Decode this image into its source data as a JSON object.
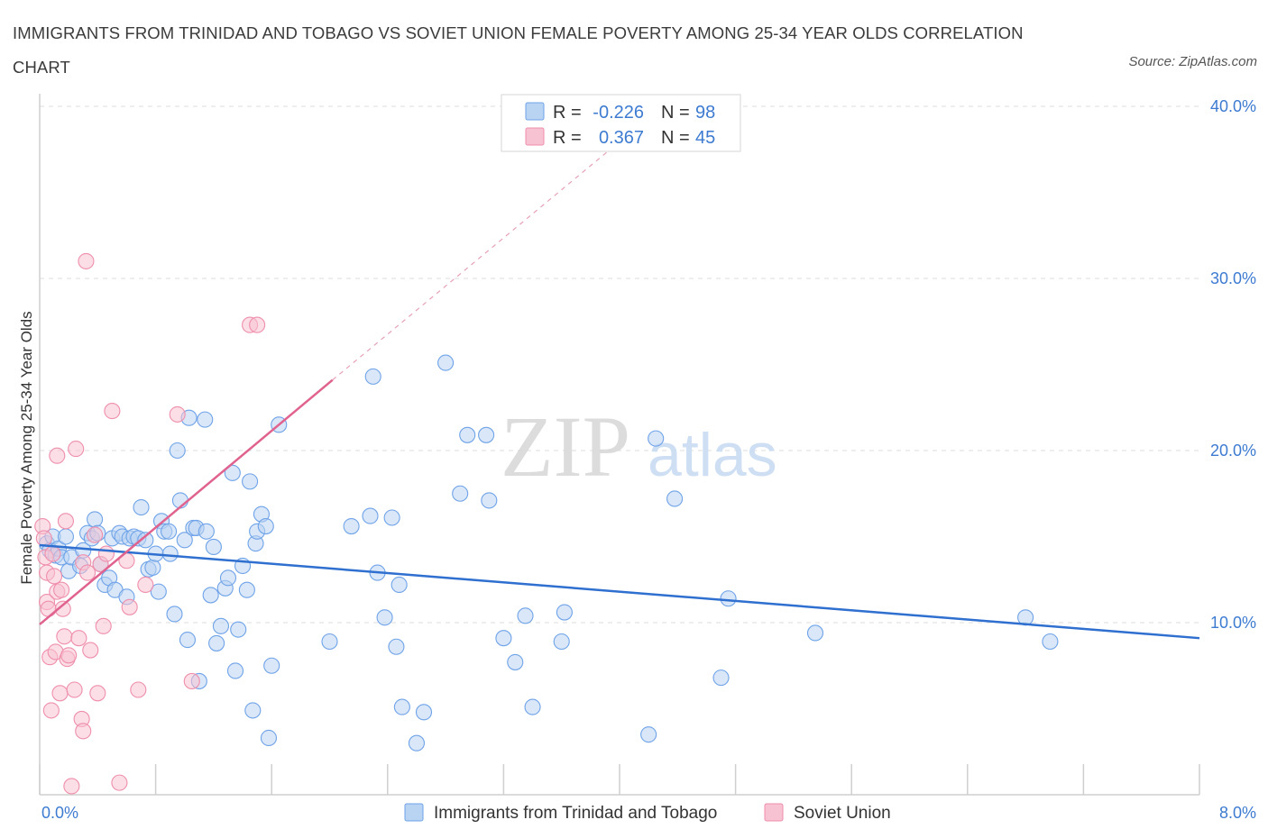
{
  "title": "IMMIGRANTS FROM TRINIDAD AND TOBAGO VS SOVIET UNION FEMALE POVERTY AMONG 25-34 YEAR OLDS CORRELATION CHART",
  "source": "Source: ZipAtlas.com",
  "watermark": {
    "zip": "ZIP",
    "atlas": "atlas"
  },
  "legend": {
    "r_label": "R =",
    "n_label": "N =",
    "rows": [
      {
        "r": "-0.226",
        "n": "98"
      },
      {
        "r": "0.367",
        "n": "45"
      }
    ]
  },
  "chart_data": {
    "type": "scatter",
    "xlabel": "",
    "ylabel": "Female Poverty Among 25-34 Year Olds",
    "xlim": [
      0,
      8
    ],
    "ylim": [
      0,
      40
    ],
    "x_tick_labels": [
      {
        "x": 0,
        "label": "0.0%"
      },
      {
        "x": 8,
        "label": "8.0%"
      }
    ],
    "y_tick_labels": [
      {
        "y": 10,
        "label": "10.0%"
      },
      {
        "y": 20,
        "label": "20.0%"
      },
      {
        "y": 30,
        "label": "30.0%"
      },
      {
        "y": 40,
        "label": "40.0%"
      }
    ],
    "grid": true,
    "legend_position": "top-center",
    "series": [
      {
        "name": "Immigrants from Trinidad and Tobago",
        "color": "#6fa3e8",
        "fill": "#b9d3f3",
        "points": [
          [
            0.05,
            14.6
          ],
          [
            0.07,
            14.2
          ],
          [
            0.09,
            15.0
          ],
          [
            0.11,
            13.9
          ],
          [
            0.13,
            14.3
          ],
          [
            0.15,
            13.8
          ],
          [
            0.18,
            15.0
          ],
          [
            0.2,
            13.0
          ],
          [
            0.22,
            13.8
          ],
          [
            0.28,
            13.3
          ],
          [
            0.3,
            14.2
          ],
          [
            0.33,
            15.2
          ],
          [
            0.36,
            14.9
          ],
          [
            0.38,
            16.0
          ],
          [
            0.4,
            15.2
          ],
          [
            0.42,
            13.4
          ],
          [
            0.45,
            12.2
          ],
          [
            0.48,
            12.6
          ],
          [
            0.5,
            14.9
          ],
          [
            0.52,
            11.9
          ],
          [
            0.55,
            15.2
          ],
          [
            0.57,
            15.0
          ],
          [
            0.6,
            11.5
          ],
          [
            0.62,
            14.9
          ],
          [
            0.65,
            15.0
          ],
          [
            0.68,
            14.9
          ],
          [
            0.7,
            16.7
          ],
          [
            0.73,
            14.8
          ],
          [
            0.75,
            13.1
          ],
          [
            0.78,
            13.2
          ],
          [
            0.8,
            14.0
          ],
          [
            0.82,
            11.8
          ],
          [
            0.84,
            15.9
          ],
          [
            0.86,
            15.3
          ],
          [
            0.89,
            15.3
          ],
          [
            0.9,
            14.0
          ],
          [
            0.93,
            10.5
          ],
          [
            0.95,
            20.0
          ],
          [
            0.97,
            17.1
          ],
          [
            1.0,
            14.8
          ],
          [
            1.02,
            9.0
          ],
          [
            1.03,
            21.9
          ],
          [
            1.06,
            15.5
          ],
          [
            1.08,
            15.5
          ],
          [
            1.1,
            6.6
          ],
          [
            1.14,
            21.8
          ],
          [
            1.15,
            15.3
          ],
          [
            1.18,
            11.6
          ],
          [
            1.2,
            14.4
          ],
          [
            1.22,
            8.8
          ],
          [
            1.25,
            9.8
          ],
          [
            1.28,
            12.0
          ],
          [
            1.3,
            12.6
          ],
          [
            1.33,
            18.7
          ],
          [
            1.35,
            7.2
          ],
          [
            1.37,
            9.6
          ],
          [
            1.4,
            13.3
          ],
          [
            1.43,
            11.9
          ],
          [
            1.45,
            18.2
          ],
          [
            1.47,
            4.9
          ],
          [
            1.49,
            14.6
          ],
          [
            1.5,
            15.3
          ],
          [
            1.53,
            16.3
          ],
          [
            1.56,
            15.6
          ],
          [
            1.58,
            3.3
          ],
          [
            1.6,
            7.5
          ],
          [
            1.65,
            21.5
          ],
          [
            2.0,
            8.9
          ],
          [
            2.15,
            15.6
          ],
          [
            2.28,
            16.2
          ],
          [
            2.3,
            24.3
          ],
          [
            2.33,
            12.9
          ],
          [
            2.38,
            10.3
          ],
          [
            2.43,
            16.1
          ],
          [
            2.46,
            8.6
          ],
          [
            2.48,
            12.2
          ],
          [
            2.5,
            5.1
          ],
          [
            2.6,
            3.0
          ],
          [
            2.65,
            4.8
          ],
          [
            2.8,
            25.1
          ],
          [
            2.9,
            17.5
          ],
          [
            2.95,
            20.9
          ],
          [
            3.08,
            20.9
          ],
          [
            3.1,
            17.1
          ],
          [
            3.2,
            9.1
          ],
          [
            3.28,
            7.7
          ],
          [
            3.35,
            10.4
          ],
          [
            3.4,
            5.1
          ],
          [
            3.6,
            8.9
          ],
          [
            3.62,
            10.6
          ],
          [
            4.2,
            3.5
          ],
          [
            4.25,
            20.7
          ],
          [
            4.38,
            17.2
          ],
          [
            4.7,
            6.8
          ],
          [
            4.75,
            11.4
          ],
          [
            5.35,
            9.4
          ],
          [
            6.8,
            10.3
          ],
          [
            6.97,
            8.9
          ]
        ]
      },
      {
        "name": "Soviet Union",
        "color": "#ef8fac",
        "fill": "#f7c2d2",
        "points": [
          [
            0.02,
            15.6
          ],
          [
            0.03,
            14.9
          ],
          [
            0.04,
            13.8
          ],
          [
            0.05,
            12.9
          ],
          [
            0.05,
            11.2
          ],
          [
            0.06,
            10.8
          ],
          [
            0.07,
            8.0
          ],
          [
            0.08,
            4.9
          ],
          [
            0.09,
            14.0
          ],
          [
            0.1,
            12.7
          ],
          [
            0.11,
            8.3
          ],
          [
            0.12,
            11.8
          ],
          [
            0.12,
            19.7
          ],
          [
            0.14,
            5.9
          ],
          [
            0.15,
            11.9
          ],
          [
            0.16,
            10.8
          ],
          [
            0.17,
            9.2
          ],
          [
            0.18,
            15.9
          ],
          [
            0.19,
            7.9
          ],
          [
            0.2,
            8.1
          ],
          [
            0.22,
            0.5
          ],
          [
            0.24,
            6.1
          ],
          [
            0.25,
            20.1
          ],
          [
            0.27,
            9.1
          ],
          [
            0.29,
            4.4
          ],
          [
            0.3,
            13.5
          ],
          [
            0.3,
            3.7
          ],
          [
            0.32,
            31.0
          ],
          [
            0.33,
            12.9
          ],
          [
            0.35,
            8.4
          ],
          [
            0.38,
            15.1
          ],
          [
            0.4,
            5.9
          ],
          [
            0.42,
            13.4
          ],
          [
            0.44,
            9.8
          ],
          [
            0.46,
            14.0
          ],
          [
            0.5,
            22.3
          ],
          [
            0.55,
            0.7
          ],
          [
            0.6,
            13.6
          ],
          [
            0.62,
            10.9
          ],
          [
            0.68,
            6.1
          ],
          [
            0.73,
            12.2
          ],
          [
            0.95,
            22.1
          ],
          [
            1.05,
            6.6
          ],
          [
            1.45,
            27.3
          ],
          [
            1.5,
            27.3
          ]
        ]
      }
    ],
    "trendlines": [
      {
        "series": "Immigrants from Trinidad and Tobago",
        "x": [
          0,
          8
        ],
        "y": [
          14.5,
          9.1
        ]
      },
      {
        "series": "Soviet Union",
        "x": [
          0,
          2.02
        ],
        "y": [
          9.9,
          24.1
        ],
        "dashed_extension": {
          "x": [
            2.02,
            4.05
          ],
          "y": [
            24.1,
            38.3
          ]
        }
      }
    ]
  }
}
